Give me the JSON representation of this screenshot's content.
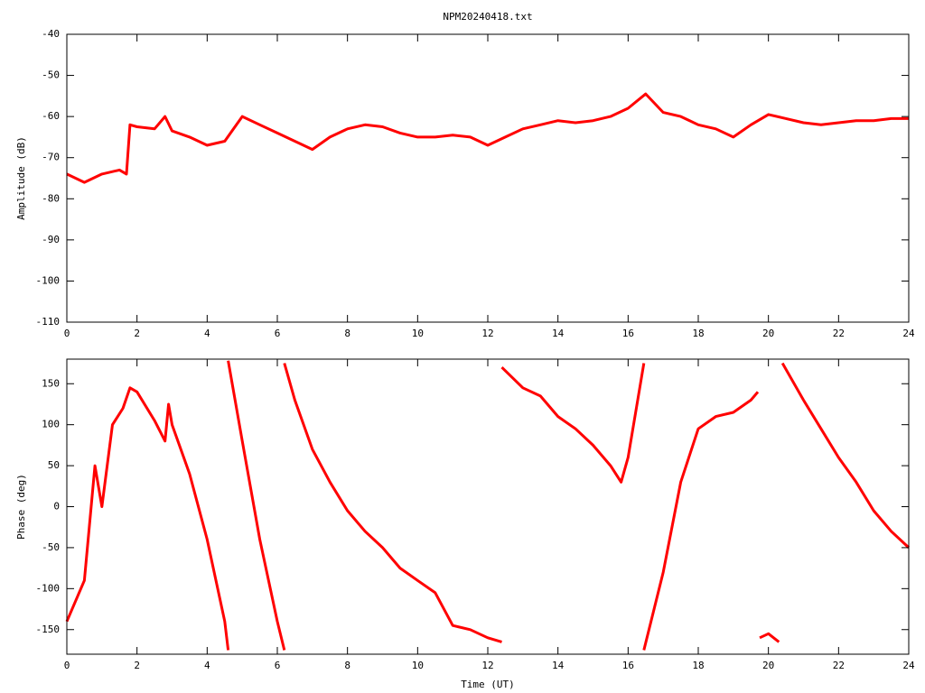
{
  "chart_data": [
    {
      "type": "line",
      "title": "NPM20240418.txt",
      "y_label": "Amplitude (dB)",
      "xlim": [
        0,
        24
      ],
      "xticks": [
        0,
        2,
        4,
        6,
        8,
        10,
        12,
        14,
        16,
        18,
        20,
        22,
        24
      ],
      "ylim": [
        -110,
        -40
      ],
      "yticks": [
        -110,
        -100,
        -90,
        -80,
        -70,
        -60,
        -50,
        -40
      ],
      "series": [
        {
          "color": "#ff0000",
          "x": [
            0,
            0.5,
            1,
            1.5,
            1.7,
            1.8,
            2,
            2.5,
            2.8,
            3,
            3.5,
            4,
            4.5,
            5,
            5.5,
            6,
            6.5,
            7,
            7.5,
            8,
            8.5,
            9,
            9.5,
            10,
            10.5,
            11,
            11.5,
            12,
            12.5,
            13,
            13.5,
            14,
            14.5,
            15,
            15.5,
            16,
            16.5,
            17,
            17.5,
            18,
            18.5,
            19,
            19.5,
            20,
            20.5,
            21,
            21.5,
            22,
            22.5,
            23,
            23.5,
            24
          ],
          "values": [
            -74,
            -76,
            -74,
            -73,
            -74,
            -62,
            -62.5,
            -63,
            -60,
            -63.5,
            -65,
            -67,
            -66,
            -60,
            -62,
            -64,
            -66,
            -68,
            -65,
            -63,
            -62,
            -62.5,
            -64,
            -65,
            -65,
            -64.5,
            -65,
            -67,
            -65,
            -63,
            -62,
            -61,
            -61.5,
            -61,
            -60,
            -58,
            -54.5,
            -59,
            -60,
            -62,
            -63,
            -65,
            -62,
            -59.5,
            -60.5,
            -61.5,
            -62,
            -61.5,
            -61,
            -61,
            -60.5,
            -60.5
          ]
        }
      ]
    },
    {
      "type": "line",
      "x_label": "Time (UT)",
      "y_label": "Phase (deg)",
      "xlim": [
        0,
        24
      ],
      "xticks": [
        0,
        2,
        4,
        6,
        8,
        10,
        12,
        14,
        16,
        18,
        20,
        22,
        24
      ],
      "ylim": [
        -180,
        180
      ],
      "yticks": [
        -150,
        -100,
        -50,
        0,
        50,
        100,
        150
      ],
      "series": [
        {
          "color": "#ff0000",
          "x": [
            0,
            0.5,
            0.8,
            1.0,
            1.3,
            1.6,
            1.8,
            2,
            2.5,
            2.8,
            2.9,
            3,
            3.5,
            4,
            4.5,
            4.6,
            4.6,
            4.6,
            5,
            5.5,
            6,
            6.2,
            6.2,
            6.2,
            6.5,
            7,
            7.5,
            8,
            8.5,
            9,
            9.5,
            10,
            10.5,
            11,
            11.5,
            12,
            12.4,
            12.4,
            12.4,
            13,
            13.5,
            14,
            14.5,
            15,
            15.5,
            15.8,
            16,
            16.45,
            16.45,
            16.45,
            17,
            17.5,
            18,
            18.5,
            19,
            19.5,
            19.7,
            19.7,
            19.75,
            20,
            20.3,
            20.4,
            20.4,
            21,
            21.5,
            22,
            22.5,
            23,
            23.5,
            24
          ],
          "values": [
            -140,
            -90,
            50,
            0,
            100,
            120,
            145,
            140,
            105,
            80,
            125,
            100,
            40,
            -40,
            -140,
            -175,
            null,
            178,
            80,
            -40,
            -140,
            -175,
            null,
            175,
            130,
            70,
            30,
            -5,
            -30,
            -50,
            -75,
            -90,
            -105,
            -145,
            -150,
            -160,
            -165,
            null,
            170,
            145,
            135,
            110,
            95,
            75,
            50,
            30,
            60,
            175,
            null,
            -175,
            -80,
            30,
            95,
            110,
            115,
            130,
            140,
            null,
            -160,
            -155,
            -165,
            null,
            175,
            130,
            95,
            60,
            30,
            -5,
            -30,
            -50
          ]
        }
      ]
    }
  ]
}
